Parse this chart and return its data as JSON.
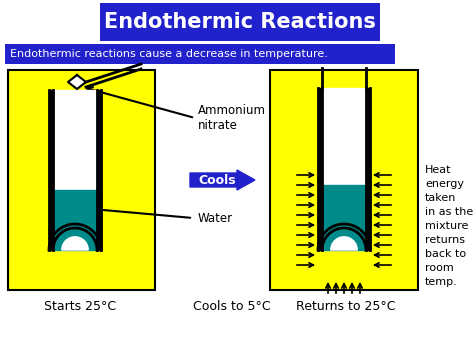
{
  "title": "Endothermic Reactions",
  "title_bg": "#2222cc",
  "title_fg": "#ffffff",
  "subtitle": "Endothermic reactions cause a decrease in temperature.",
  "subtitle_bg": "#2222cc",
  "subtitle_fg": "#ffffff",
  "bg_color": "#ffffff",
  "yellow": "#ffff00",
  "teal": "#008B8B",
  "arrow_blue": "#2222cc",
  "label1": "Ammonium\nnitrate",
  "label2": "Water",
  "cools_label": "Cools",
  "heat_text": "Heat\nenergy\ntaken\nin as the\nmixture\nreturns\nback to\nroom\ntemp.",
  "bottom_labels": [
    "Starts 25°C",
    "Cools to 5°C",
    "Returns to 25°C"
  ],
  "fig_w": 4.74,
  "fig_h": 3.55,
  "dpi": 100
}
